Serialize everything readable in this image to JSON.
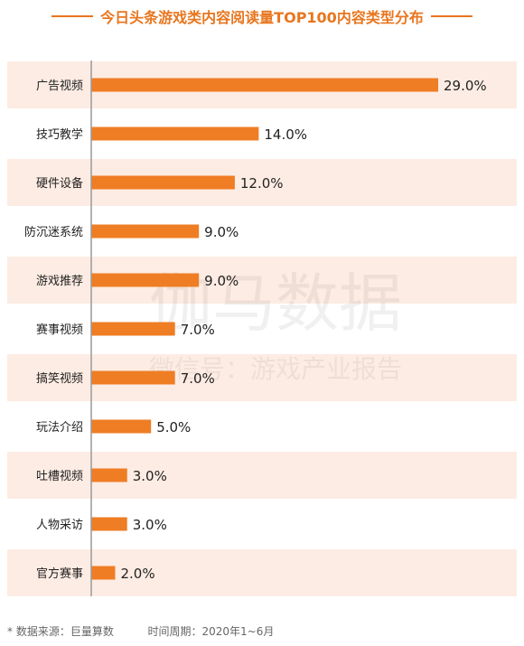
{
  "chart_data": {
    "type": "bar",
    "orientation": "horizontal",
    "title": "今日头条游戏类内容阅读量TOP100内容类型分布",
    "categories": [
      "广告视频",
      "技巧教学",
      "硬件设备",
      "防沉迷系统",
      "游戏推荐",
      "赛事视频",
      "搞笑视频",
      "玩法介绍",
      "吐槽视频",
      "人物采访",
      "官方赛事"
    ],
    "values": [
      29.0,
      14.0,
      12.0,
      9.0,
      9.0,
      7.0,
      7.0,
      5.0,
      3.0,
      3.0,
      2.0
    ],
    "value_labels": [
      "29.0%",
      "14.0%",
      "12.0%",
      "9.0%",
      "9.0%",
      "7.0%",
      "7.0%",
      "5.0%",
      "3.0%",
      "3.0%",
      "2.0%"
    ],
    "xlim": [
      0,
      29.0
    ],
    "unit": "%",
    "grid": false,
    "legend": "none"
  },
  "watermark": {
    "line1": "伽马数据",
    "line2": "微信号：游戏产业报告"
  },
  "footnote": {
    "source": "*  数据来源：巨量算数",
    "period": "时间周期：2020年1~6月"
  },
  "colors": {
    "bar": "#ef7d24",
    "band": "#fdece3",
    "title": "#e8761f",
    "text": "#222222"
  }
}
